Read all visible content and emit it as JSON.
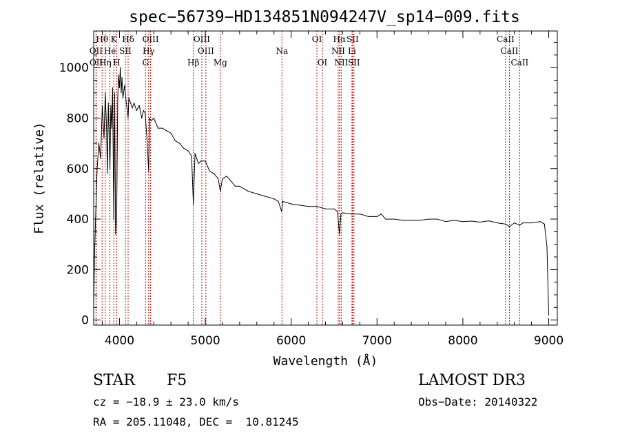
{
  "chart_data": {
    "type": "line",
    "title": "spec−56739−HD134851N094247V_sp14−009.fits",
    "xlabel": "Wavelength (Å)",
    "ylabel": "Flux (relative)",
    "xlim": [
      3700,
      9100
    ],
    "ylim": [
      -20,
      1145
    ],
    "xticks": [
      4000,
      5000,
      6000,
      7000,
      8000,
      9000
    ],
    "yticks": [
      0,
      200,
      400,
      600,
      800,
      1000
    ],
    "grid": false,
    "series": [
      {
        "name": "flux",
        "x": [
          3700,
          3710,
          3720,
          3740,
          3760,
          3780,
          3800,
          3820,
          3835,
          3850,
          3860,
          3870,
          3889,
          3900,
          3910,
          3920,
          3934,
          3945,
          3955,
          3968,
          3980,
          3990,
          4000,
          4010,
          4020,
          4030,
          4040,
          4060,
          4080,
          4101,
          4110,
          4130,
          4150,
          4170,
          4200,
          4230,
          4260,
          4280,
          4300,
          4320,
          4340,
          4350,
          4370,
          4400,
          4450,
          4500,
          4550,
          4600,
          4650,
          4700,
          4750,
          4800,
          4840,
          4861,
          4880,
          4900,
          4920,
          4950,
          5000,
          5050,
          5100,
          5150,
          5175,
          5200,
          5250,
          5300,
          5350,
          5400,
          5500,
          5600,
          5700,
          5800,
          5850,
          5890,
          5900,
          5950,
          6000,
          6100,
          6200,
          6300,
          6400,
          6500,
          6540,
          6563,
          6580,
          6600,
          6700,
          6800,
          6900,
          7000,
          7050,
          7100,
          7200,
          7300,
          7400,
          7500,
          7600,
          7700,
          7800,
          7900,
          8000,
          8100,
          8200,
          8300,
          8400,
          8498,
          8542,
          8600,
          8662,
          8700,
          8800,
          8900,
          8950,
          8980,
          9000
        ],
        "values": [
          50,
          250,
          380,
          600,
          700,
          640,
          850,
          720,
          900,
          760,
          580,
          860,
          600,
          850,
          760,
          920,
          400,
          900,
          340,
          420,
          880,
          970,
          920,
          1000,
          900,
          960,
          880,
          930,
          860,
          800,
          880,
          860,
          840,
          860,
          830,
          850,
          800,
          830,
          820,
          720,
          590,
          800,
          790,
          800,
          760,
          760,
          750,
          740,
          710,
          700,
          680,
          670,
          650,
          460,
          660,
          640,
          620,
          630,
          630,
          590,
          580,
          560,
          510,
          560,
          570,
          550,
          530,
          530,
          510,
          500,
          490,
          480,
          470,
          430,
          470,
          465,
          460,
          455,
          450,
          450,
          440,
          440,
          430,
          340,
          420,
          425,
          420,
          420,
          410,
          410,
          420,
          400,
          400,
          395,
          395,
          395,
          400,
          400,
          390,
          395,
          390,
          392,
          388,
          393,
          385,
          380,
          370,
          385,
          375,
          385,
          385,
          390,
          380,
          290,
          20
        ]
      }
    ],
    "lines": [
      {
        "name": "Hθ",
        "wave": 3798,
        "row": 0
      },
      {
        "name": "K",
        "wave": 3934,
        "row": 0
      },
      {
        "name": "Hδ",
        "wave": 4101,
        "row": 0
      },
      {
        "name": "OIII",
        "wave": 4363,
        "row": 0
      },
      {
        "name": "OIII",
        "wave": 4959,
        "row": 0
      },
      {
        "name": "OI",
        "wave": 6300,
        "row": 0
      },
      {
        "name": "Hα",
        "wave": 6563,
        "row": 0
      },
      {
        "name": "SII",
        "wave": 6716,
        "row": 0
      },
      {
        "name": "CaII",
        "wave": 8498,
        "row": 0
      },
      {
        "name": "OII",
        "wave": 3727,
        "row": 1
      },
      {
        "name": "He",
        "wave": 3889,
        "row": 1
      },
      {
        "name": "SII",
        "wave": 4069,
        "row": 1
      },
      {
        "name": "Hγ",
        "wave": 4340,
        "row": 1
      },
      {
        "name": "OIII",
        "wave": 5007,
        "row": 1
      },
      {
        "name": "Na",
        "wave": 5893,
        "row": 1
      },
      {
        "name": "NII",
        "wave": 6548,
        "row": 1
      },
      {
        "name": "Li",
        "wave": 6708,
        "row": 1
      },
      {
        "name": "CaII",
        "wave": 8542,
        "row": 1
      },
      {
        "name": "OII",
        "wave": 3729,
        "row": 2
      },
      {
        "name": "Hη",
        "wave": 3835,
        "row": 2
      },
      {
        "name": "H",
        "wave": 3968,
        "row": 2
      },
      {
        "name": "G",
        "wave": 4304,
        "row": 2
      },
      {
        "name": "Hβ",
        "wave": 4861,
        "row": 2
      },
      {
        "name": "Mg",
        "wave": 5175,
        "row": 2
      },
      {
        "name": "OI",
        "wave": 6364,
        "row": 2
      },
      {
        "name": "NII",
        "wave": 6583,
        "row": 2
      },
      {
        "name": "SII",
        "wave": 6731,
        "row": 2
      },
      {
        "name": "CaII",
        "wave": 8662,
        "row": 2
      }
    ]
  },
  "info": {
    "class": "STAR",
    "subclass": "F5",
    "survey": "LAMOST DR3",
    "cz": "cz = −18.9 ± 23.0 km/s",
    "obs_date": "Obs−Date: 20140322",
    "radec": "RA = 205.11048, DEC =  10.81245"
  }
}
